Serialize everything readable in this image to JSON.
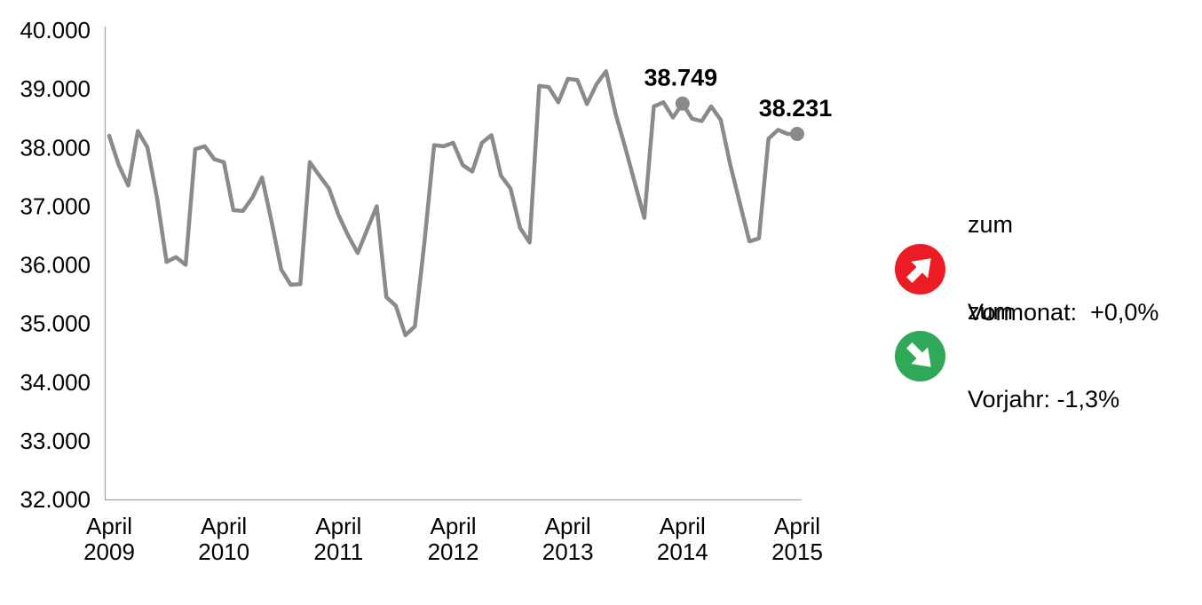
{
  "chart_data": {
    "type": "line",
    "title": "",
    "x_start": "April 2009",
    "x_end": "April 2015",
    "frequency": "monthly",
    "values": [
      38200,
      37700,
      37350,
      38280,
      38000,
      37150,
      36050,
      36130,
      36000,
      37970,
      38020,
      37800,
      37750,
      36930,
      36920,
      37150,
      37490,
      36730,
      35920,
      35660,
      35670,
      37750,
      37520,
      37300,
      36850,
      36500,
      36200,
      36600,
      37000,
      35450,
      35300,
      34800,
      34950,
      36400,
      38040,
      38020,
      38080,
      37700,
      37590,
      38080,
      38210,
      37520,
      37300,
      36630,
      36380,
      39050,
      39030,
      38770,
      39170,
      39150,
      38740,
      39080,
      39300,
      38570,
      38000,
      37400,
      36800,
      38700,
      38770,
      38510,
      38749,
      38490,
      38450,
      38700,
      38470,
      37700,
      37050,
      36400,
      36450,
      38150,
      38300,
      38230,
      38231
    ],
    "y_min": 32000,
    "y_max": 40000,
    "y_tick_step": 1000,
    "y_tick_labels": [
      "40.000",
      "39.000",
      "38.000",
      "37.000",
      "36.000",
      "35.000",
      "34.000",
      "33.000",
      "32.000"
    ],
    "x_ticks": [
      {
        "line1": "April",
        "line2": "2009",
        "month_index": 0
      },
      {
        "line1": "April",
        "line2": "2010",
        "month_index": 12
      },
      {
        "line1": "April",
        "line2": "2011",
        "month_index": 24
      },
      {
        "line1": "April",
        "line2": "2012",
        "month_index": 36
      },
      {
        "line1": "April",
        "line2": "2013",
        "month_index": 48
      },
      {
        "line1": "April",
        "line2": "2014",
        "month_index": 60
      },
      {
        "line1": "April",
        "line2": "2015",
        "month_index": 72
      }
    ],
    "annotations": [
      {
        "month_index": 60,
        "value": 38749,
        "label": "38.749"
      },
      {
        "month_index": 72,
        "value": 38231,
        "label": "38.231"
      }
    ],
    "line_color": "#8a8a8a",
    "marker_color": "#8a8a8a",
    "axis_color": "#a6a6a6",
    "text_color": "#000000",
    "grid": false,
    "legend_position": "right"
  },
  "legend": {
    "items": [
      {
        "icon": "arrow-up-right-circle",
        "color": "#ec1c24",
        "line1": "zum",
        "line2": "Vormonat:  +0,0%"
      },
      {
        "icon": "arrow-down-right-circle",
        "color": "#2fa857",
        "line1": "zum",
        "line2": "Vorjahr: -1,3%"
      }
    ]
  }
}
